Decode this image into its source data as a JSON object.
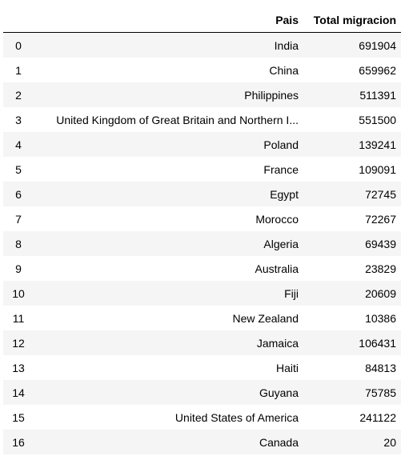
{
  "table": {
    "headers": {
      "index": "",
      "pais": "Pais",
      "total": "Total migracion"
    },
    "rows": [
      {
        "index": "0",
        "pais": "India",
        "total": "691904"
      },
      {
        "index": "1",
        "pais": "China",
        "total": "659962"
      },
      {
        "index": "2",
        "pais": "Philippines",
        "total": "511391"
      },
      {
        "index": "3",
        "pais": "United Kingdom of Great Britain and Northern I...",
        "total": "551500"
      },
      {
        "index": "4",
        "pais": "Poland",
        "total": "139241"
      },
      {
        "index": "5",
        "pais": "France",
        "total": "109091"
      },
      {
        "index": "6",
        "pais": "Egypt",
        "total": "72745"
      },
      {
        "index": "7",
        "pais": "Morocco",
        "total": "72267"
      },
      {
        "index": "8",
        "pais": "Algeria",
        "total": "69439"
      },
      {
        "index": "9",
        "pais": "Australia",
        "total": "23829"
      },
      {
        "index": "10",
        "pais": "Fiji",
        "total": "20609"
      },
      {
        "index": "11",
        "pais": "New Zealand",
        "total": "10386"
      },
      {
        "index": "12",
        "pais": "Jamaica",
        "total": "106431"
      },
      {
        "index": "13",
        "pais": "Haiti",
        "total": "84813"
      },
      {
        "index": "14",
        "pais": "Guyana",
        "total": "75785"
      },
      {
        "index": "15",
        "pais": "United States of America",
        "total": "241122"
      },
      {
        "index": "16",
        "pais": "Canada",
        "total": "20"
      }
    ]
  }
}
